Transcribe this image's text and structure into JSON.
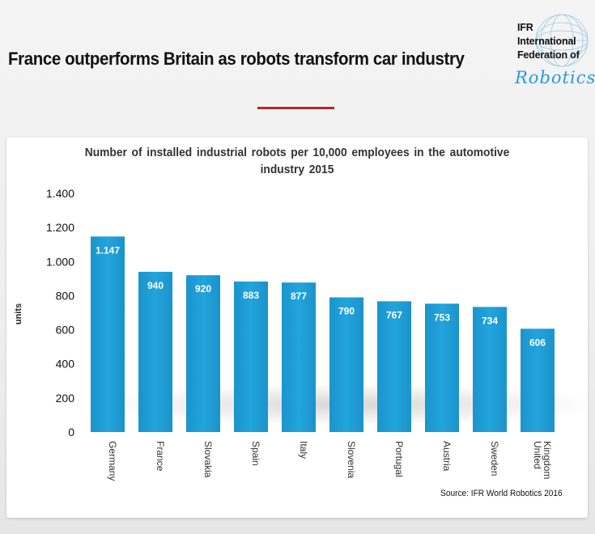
{
  "headline": "France outperforms Britain as robots transform car industry",
  "logo": {
    "lines": [
      "IFR",
      "International",
      "Federation of"
    ],
    "script": "Robotics"
  },
  "chart_data": {
    "type": "bar",
    "title_lines": [
      "Number of installed industrial robots per 10,000 employees in the automotive",
      "industry 2015"
    ],
    "ylabel": "units",
    "xlabel": "",
    "ylim": [
      0,
      1400
    ],
    "yticks": [
      0,
      200,
      400,
      600,
      800,
      1000,
      1200,
      1400
    ],
    "ytick_labels": [
      "0",
      "200",
      "400",
      "600",
      "800",
      "1.000",
      "1.200",
      "1.400"
    ],
    "categories": [
      "Germany",
      "France",
      "Slovakia",
      "Spain",
      "Italy",
      "Slovenia",
      "Portugal",
      "Austria",
      "Sweden",
      "United Kingdom"
    ],
    "category_label_lines": [
      [
        "Germany"
      ],
      [
        "France"
      ],
      [
        "Slovakia"
      ],
      [
        "Spain"
      ],
      [
        "Italy"
      ],
      [
        "Slovenia"
      ],
      [
        "Portugal"
      ],
      [
        "Austria"
      ],
      [
        "Sweden"
      ],
      [
        "United",
        "Kingdom"
      ]
    ],
    "values": [
      1147,
      940,
      920,
      883,
      877,
      790,
      767,
      753,
      734,
      606
    ],
    "value_labels": [
      "1.147",
      "940",
      "920",
      "883",
      "877",
      "790",
      "767",
      "753",
      "734",
      "606"
    ],
    "bar_color": "#1f9ed6",
    "grid": false,
    "source": "Source: IFR World Robotics 2016"
  }
}
